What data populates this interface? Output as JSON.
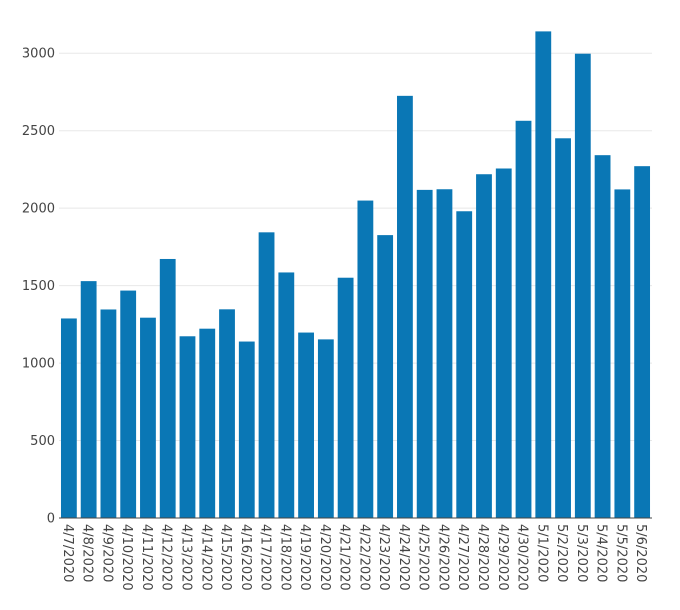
{
  "chart_data": {
    "type": "bar",
    "title": "",
    "xlabel": "",
    "ylabel": "",
    "ylim": [
      0,
      3150
    ],
    "yticks": [
      0,
      500,
      1000,
      1500,
      2000,
      2500,
      3000
    ],
    "grid": true,
    "bar_color": "#0a77b5",
    "categories": [
      "4/7/2020",
      "4/8/2020",
      "4/9/2020",
      "4/10/2020",
      "4/11/2020",
      "4/12/2020",
      "4/13/2020",
      "4/14/2020",
      "4/15/2020",
      "4/16/2020",
      "4/17/2020",
      "4/18/2020",
      "4/19/2020",
      "4/20/2020",
      "4/21/2020",
      "4/22/2020",
      "4/23/2020",
      "4/24/2020",
      "4/25/2020",
      "4/26/2020",
      "4/27/2020",
      "4/28/2020",
      "4/29/2020",
      "4/30/2020",
      "5/1/2020",
      "5/2/2020",
      "5/3/2020",
      "5/4/2020",
      "5/5/2020",
      "5/6/2020"
    ],
    "values": [
      1288,
      1529,
      1346,
      1468,
      1293,
      1672,
      1173,
      1222,
      1347,
      1139,
      1844,
      1585,
      1197,
      1153,
      1551,
      2049,
      1826,
      2725,
      2118,
      2122,
      1980,
      2219,
      2256,
      2564,
      3141,
      2451,
      2997,
      2342,
      2121,
      2271
    ]
  }
}
